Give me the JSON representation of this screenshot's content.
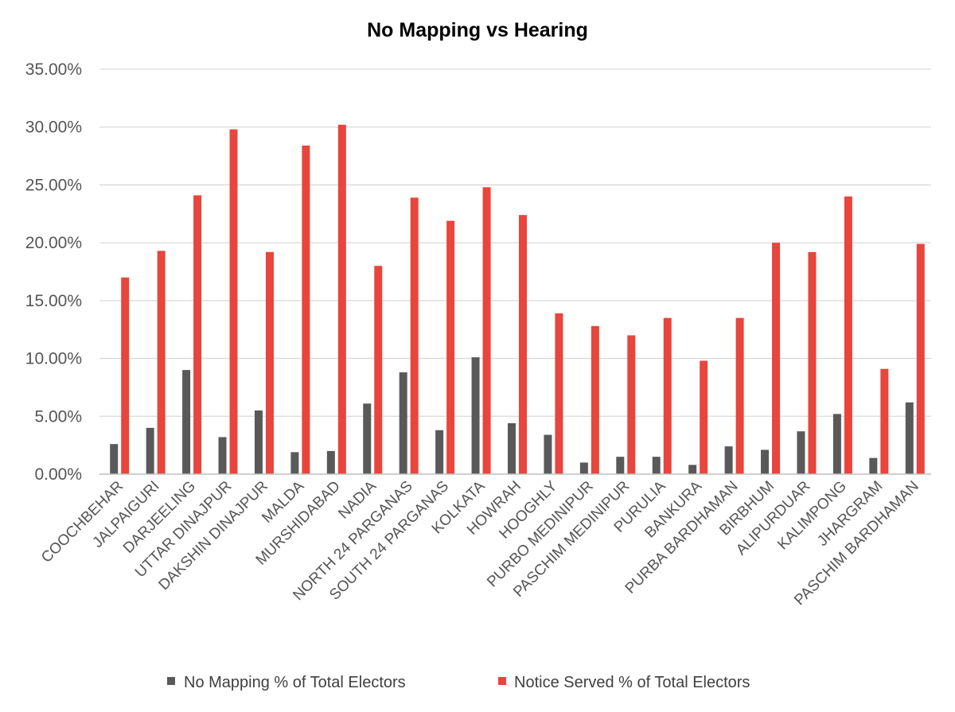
{
  "chart_data": {
    "type": "bar",
    "title": "No Mapping vs Hearing",
    "xlabel": "",
    "ylabel": "",
    "ylim": [
      0,
      35
    ],
    "y_ticks": [
      "0.00%",
      "5.00%",
      "10.00%",
      "15.00%",
      "20.00%",
      "25.00%",
      "30.00%",
      "35.00%"
    ],
    "grid": true,
    "legend_position": "bottom",
    "categories": [
      "COOCHBEHAR",
      "JALPAIGURI",
      "DARJEELING",
      "UTTAR DINAJPUR",
      "DAKSHIN DINAJPUR",
      "MALDA",
      "MURSHIDABAD",
      "NADIA",
      "NORTH 24 PARGANAS",
      "SOUTH 24 PARGANAS",
      "KOLKATA",
      "HOWRAH",
      "HOOGHLY",
      "PURBO MEDINIPUR",
      "PASCHIM MEDINIPUR",
      "PURULIA",
      "BANKURA",
      "PURBA BARDHAMAN",
      "BIRBHUM",
      "ALIPURDUAR",
      "KALIMPONG",
      "JHARGRAM",
      "PASCHIM BARDHAMAN"
    ],
    "series": [
      {
        "name": "No Mapping % of Total Electors",
        "color": "#595959",
        "values": [
          2.6,
          4.0,
          9.0,
          3.2,
          5.5,
          1.9,
          2.0,
          6.1,
          8.8,
          3.8,
          10.1,
          4.4,
          3.4,
          1.0,
          1.5,
          1.5,
          0.8,
          2.4,
          2.1,
          3.7,
          5.2,
          1.4,
          6.2
        ]
      },
      {
        "name": "Notice Served % of Total Electors",
        "color": "#e8453c",
        "values": [
          17.0,
          19.3,
          24.1,
          29.8,
          19.2,
          28.4,
          30.2,
          18.0,
          23.9,
          21.9,
          24.8,
          22.4,
          13.9,
          12.8,
          12.0,
          13.5,
          9.8,
          13.5,
          20.0,
          19.2,
          24.0,
          9.1,
          19.9
        ]
      }
    ]
  }
}
